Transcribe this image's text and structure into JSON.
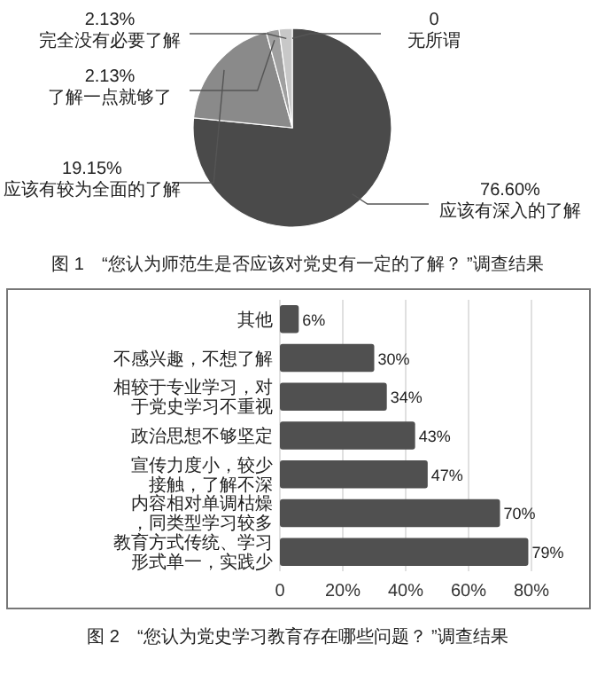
{
  "chart_data": [
    {
      "type": "pie",
      "categories": [
        "应该有深入的了解",
        "应该有较为全面的了解",
        "了解一点就够了",
        "完全没有必要了解",
        "无所谓"
      ],
      "values": [
        76.6,
        19.15,
        2.13,
        2.13,
        0
      ],
      "colors": [
        "#4a4a4a",
        "#8a8a8a",
        "#a0a0a0",
        "#c8c8c8",
        "#dcdcdc"
      ],
      "value_labels": [
        "76.60%",
        "19.15%",
        "2.13%",
        "2.13%",
        "0"
      ],
      "annotations": [
        "图 1　“您认为师范生是否应该对党史有一定的了解？ ”调查结果"
      ]
    },
    {
      "type": "bar",
      "orientation": "horizontal",
      "categories": [
        "其他",
        "不感兴趣，不想了解",
        "相较于专业学习，对于党史学习不重视",
        "政治思想不够坚定",
        "宣传力度小，较少接触，了解不深",
        "内容相对单调枯燥，同类型学习较多",
        "教育方式传统、学习形式单一，实践少"
      ],
      "values": [
        6,
        30,
        34,
        43,
        47,
        70,
        79
      ],
      "color": "#505050",
      "xlim": [
        0,
        80
      ],
      "xticks": [
        {
          "value": 0,
          "label": "0"
        },
        {
          "value": 20,
          "label": "20%"
        },
        {
          "value": 40,
          "label": "40%"
        },
        {
          "value": 60,
          "label": "60%"
        },
        {
          "value": 80,
          "label": "80%"
        }
      ],
      "grid": "x",
      "value_labels": [
        "6%",
        "30%",
        "34%",
        "43%",
        "47%",
        "70%",
        "79%"
      ],
      "annotations": [
        "图 2　“您认为党史学习教育存在哪些问题？ ”调查结果"
      ]
    }
  ]
}
